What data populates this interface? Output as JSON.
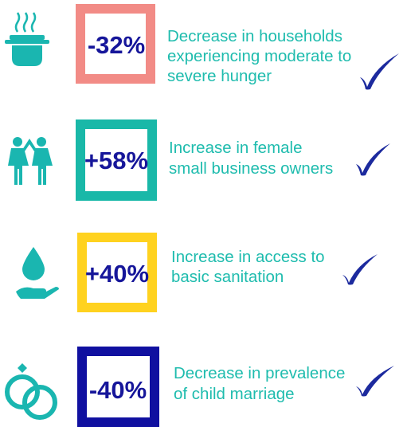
{
  "items": [
    {
      "value": "-32%",
      "description": [
        "Decrease in households",
        "experiencing moderate to",
        "severe hunger"
      ]
    },
    {
      "value": "+58%",
      "description": [
        "Increase in female",
        "small business owners"
      ]
    },
    {
      "value": "+40%",
      "description": [
        "Increase in access to",
        "basic sanitation"
      ]
    },
    {
      "value": "-40%",
      "description": [
        "Decrease in prevalence",
        "of child marriage"
      ]
    }
  ]
}
